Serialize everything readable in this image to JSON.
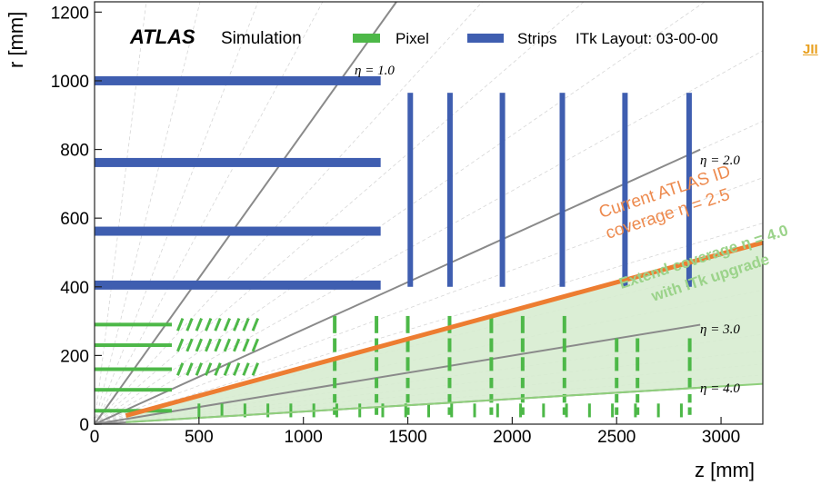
{
  "header": {
    "atlas_label": "ATLAS",
    "simulation_label": "Simulation",
    "layout_label": "ITk Layout: 03-00-00"
  },
  "legend": {
    "pixel_label": "Pixel",
    "strips_label": "Strips"
  },
  "corner_tag": "JII",
  "annotations": {
    "current_line1": "Current ATLAS ID",
    "current_line2": "coverage η = 2.5",
    "extend_line1": "Extend coverage η = 4.0",
    "extend_line2": "with ITk upgrade"
  },
  "eta_labels": {
    "eta1": "η = 1.0",
    "eta2": "η = 2.0",
    "eta3": "η = 3.0",
    "eta4": "η = 4.0"
  },
  "axes": {
    "xlabel": "z [mm]",
    "ylabel": "r [mm]",
    "xlim": [
      0,
      3200
    ],
    "ylim": [
      0,
      1230
    ],
    "xticks": [
      "0",
      "500",
      "1000",
      "1500",
      "2000",
      "2500",
      "3000"
    ],
    "yticks": [
      "0",
      "200",
      "400",
      "600",
      "800",
      "1000",
      "1200"
    ]
  },
  "colors": {
    "pixel": "#4db848",
    "strips": "#3f5eb0",
    "eta_line": "#8a8a8a",
    "current_coverage": "#ed7d31",
    "extended_coverage": "#8fcf7c",
    "extended_fill": "#d7ecd0",
    "grid": "#d6d6d6"
  },
  "detector": {
    "strip_barrels_r": [
      1000,
      762,
      562,
      405
    ],
    "strip_barrel_z_max": 1370,
    "strip_disks_z": [
      1512,
      1702,
      1953,
      2240,
      2540,
      2847
    ],
    "strip_disk_r_range": [
      400,
      965
    ],
    "pixel_barrels_r": [
      290,
      230,
      160,
      100,
      39
    ],
    "pixel_barrel_z_max": 370,
    "current_eta": 2.5,
    "extended_eta": 4.0
  }
}
